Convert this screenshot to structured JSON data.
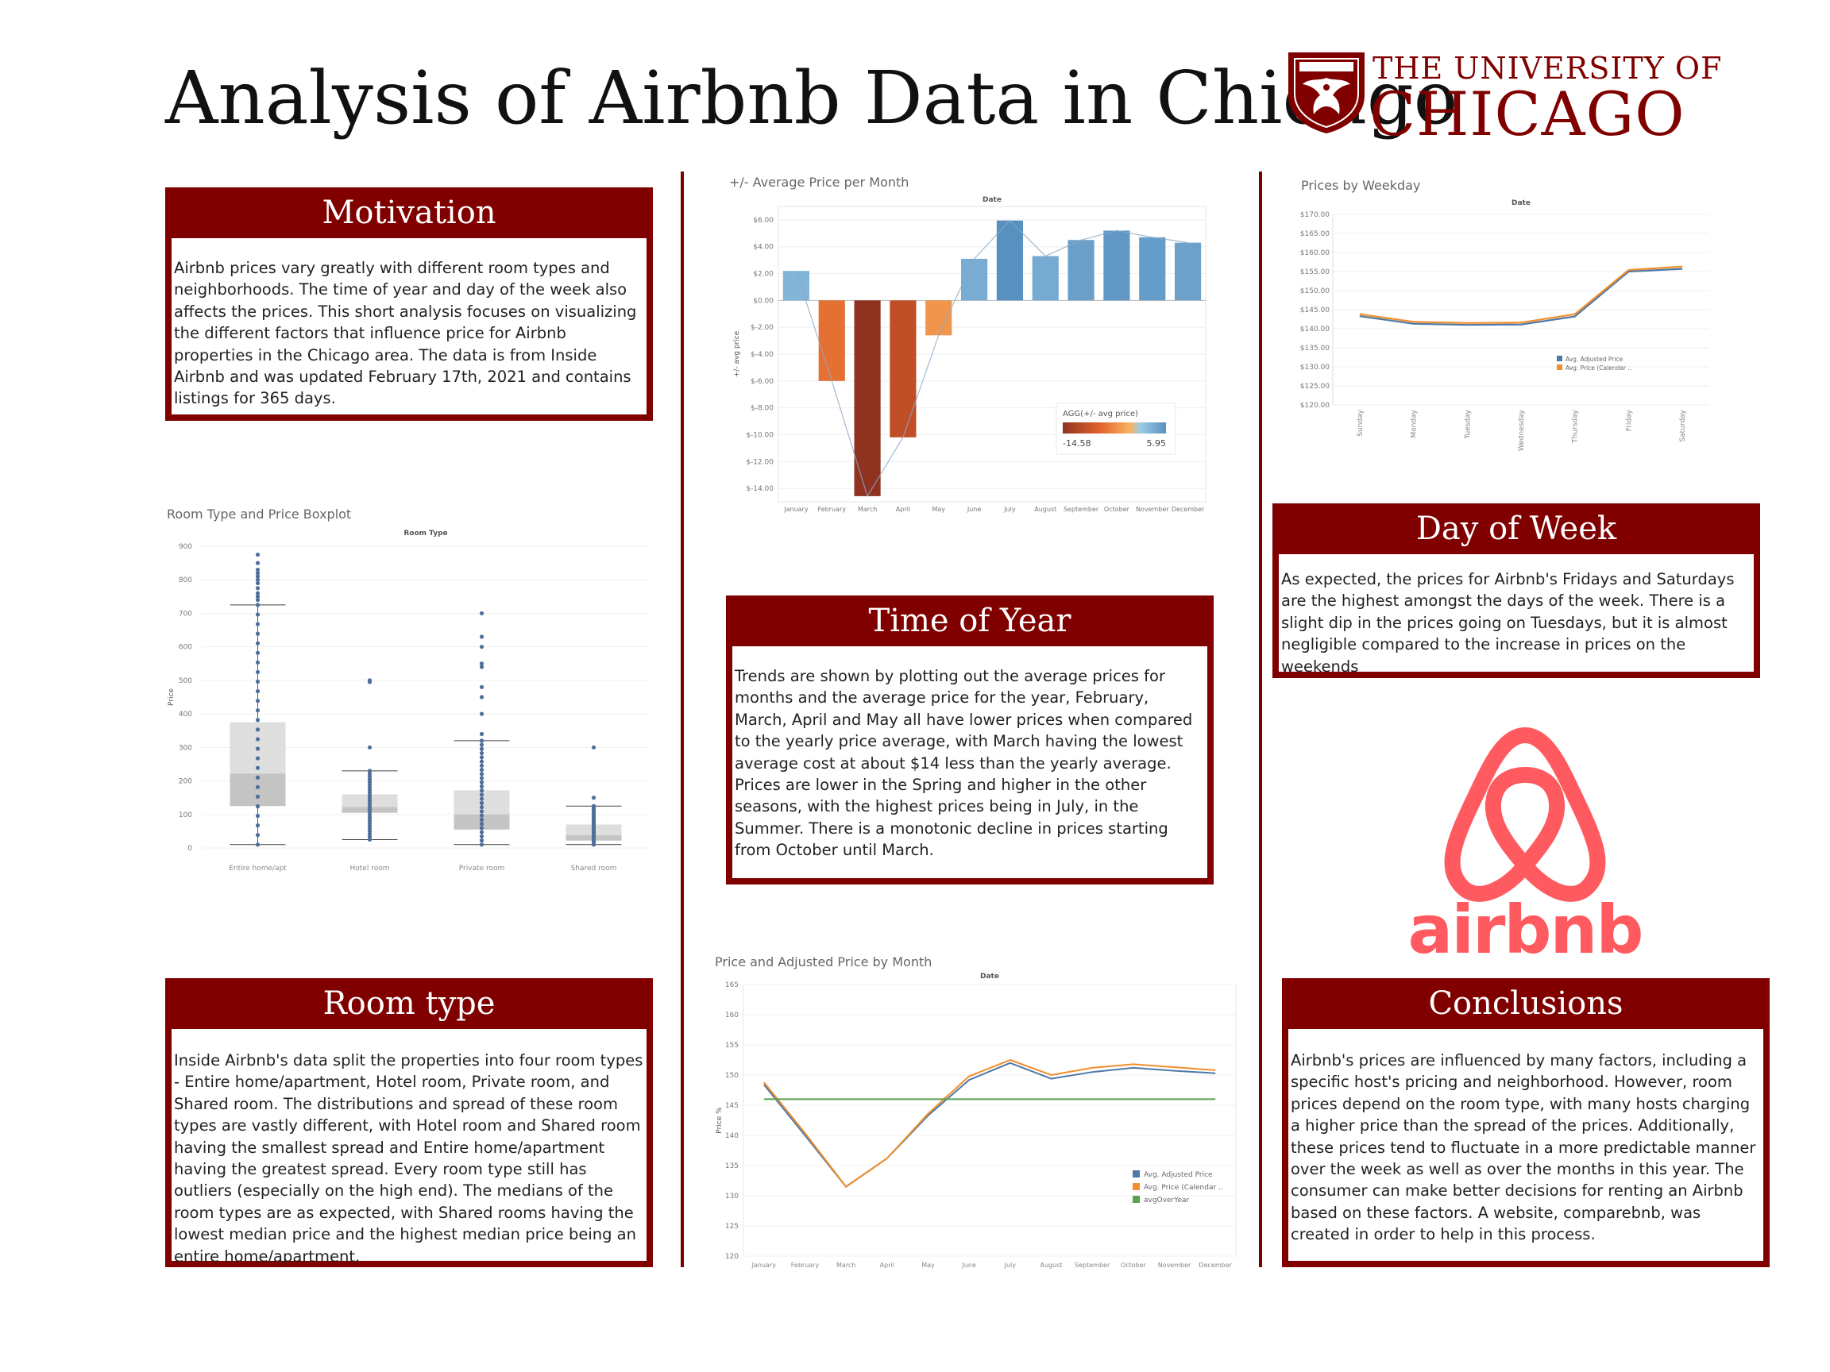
{
  "title": "Analysis of Airbnb Data in Chicago",
  "logo": {
    "line1": "THE UNIVERSITY OF",
    "line2": "CHICAGO",
    "color": "#800000"
  },
  "airbnb_logo": {
    "wordmark": "airbnb",
    "icon": "airbnb-belo-icon",
    "color": "#ff5a5f"
  },
  "motivation": {
    "heading": "Motivation",
    "text": "Airbnb prices vary greatly with different room types and neighborhoods. The time of year and day of the week also affects the prices. This short analysis focuses on visualizing the different factors that influence price for Airbnb properties in the Chicago area. The data is from Inside Airbnb and was updated February 17th, 2021 and contains listings for 365 days."
  },
  "time_of_year": {
    "heading": "Time of Year",
    "text": "Trends are shown by plotting out the average prices for months and the average price for the year, February, March, April and May all have lower prices when compared to the yearly price average, with March having the lowest average cost at about $14 less than the yearly average. Prices are lower in the Spring and higher in the other seasons, with the highest prices being in July, in the Summer. There is a monotonic decline in prices starting from October until March."
  },
  "day_of_week": {
    "heading": "Day of Week",
    "text": "As expected, the prices for Airbnb's Fridays and Saturdays are the highest amongst the days of the week. There is a slight dip in the prices going on Tuesdays, but it is almost negligible compared to the increase in prices on the weekends"
  },
  "room_type": {
    "heading": "Room type",
    "text": "Inside Airbnb's data split the properties into four room types - Entire home/apartment, Hotel room, Private room, and Shared room. The distributions and spread of these room types are vastly different, with Hotel room and Shared room having the smallest spread and Entire home/apartment having the greatest spread. Every room type still has outliers (especially on the high end). The medians of the room types are as expected, with Shared rooms having the lowest median price and the highest median price being an entire home/apartment."
  },
  "conclusions": {
    "heading": "Conclusions",
    "text": "Airbnb's prices are influenced by many factors, including a specific host's pricing and neighborhood. However, room prices depend on the room type, with many hosts charging a higher price than the spread of the prices. Additionally, these prices tend to fluctuate in a more predictable manner over the week as well as over the months in this year.  The consumer can make better decisions for renting an Airbnb based on these factors. A website, comparebnb, was created in order to help in this process."
  },
  "chart_data": [
    {
      "id": "month_diff",
      "type": "bar",
      "title": "+/- Average Price per Month",
      "xlabel": "Date",
      "ylabel": "+/- avg price",
      "categories": [
        "January",
        "February",
        "March",
        "April",
        "May",
        "June",
        "July",
        "August",
        "September",
        "October",
        "November",
        "December"
      ],
      "values": [
        2.2,
        -6.0,
        -14.58,
        -10.2,
        -2.6,
        3.1,
        5.95,
        3.3,
        4.5,
        5.2,
        4.7,
        4.3
      ],
      "ylim": [
        -15,
        7
      ],
      "yticks": [
        6,
        4,
        2,
        0,
        -2,
        -4,
        -6,
        -8,
        -10,
        -12,
        -14
      ],
      "ytick_labels": [
        "$6.00",
        "$4.00",
        "$2.00",
        "$0.00",
        "$-2.00",
        "$-4.00",
        "$-6.00",
        "$-8.00",
        "$-10.00",
        "$-12.00",
        "$-14.00"
      ],
      "legend": {
        "title": "AGG(+/- avg price)",
        "min_label": "-14.58",
        "max_label": "5.95",
        "position": "bottom-right"
      },
      "colors": {
        "negative_dark": "#8f3320",
        "negative_mid": "#e0622b",
        "negative_light": "#f9b35f",
        "positive_light": "#9ccae6",
        "positive_dark": "#5891c0"
      },
      "grid": true
    },
    {
      "id": "weekday",
      "type": "line",
      "title": "Prices by Weekday",
      "xlabel": "Date",
      "categories": [
        "Sunday",
        "Monday",
        "Tuesday",
        "Wednesday",
        "Thursday",
        "Friday",
        "Saturday"
      ],
      "series": [
        {
          "name": "Avg. Adjusted Price",
          "values": [
            143.3,
            141.3,
            141.0,
            141.1,
            143.2,
            155.0,
            155.7
          ],
          "color": "#4e79a7"
        },
        {
          "name": "Avg. Price (Calendar ..",
          "values": [
            143.8,
            141.8,
            141.5,
            141.6,
            143.8,
            155.4,
            156.3
          ],
          "color": "#f28e2b"
        }
      ],
      "ylim": [
        120,
        170
      ],
      "yticks": [
        170,
        165,
        160,
        155,
        150,
        145,
        140,
        135,
        130,
        125,
        120
      ],
      "ytick_labels": [
        "$170.00",
        "$165.00",
        "$160.00",
        "$155.00",
        "$150.00",
        "$145.00",
        "$140.00",
        "$135.00",
        "$130.00",
        "$125.00",
        "$120.00"
      ],
      "legend": "right",
      "grid": true
    },
    {
      "id": "boxplot",
      "type": "boxplot",
      "title": "Room Type and Price Boxplot",
      "xlabel": "Room Type",
      "ylabel": "Price",
      "categories": [
        "Entire home/apt",
        "Hotel room",
        "Private room",
        "Shared room"
      ],
      "boxes": [
        {
          "whisker_low": 10,
          "q1": 125,
          "median": 222,
          "q3": 375,
          "whisker_high": 725,
          "outliers": [
            740,
            750,
            760,
            775,
            790,
            800,
            810,
            820,
            830,
            850,
            875
          ]
        },
        {
          "whisker_low": 25,
          "q1": 105,
          "median": 122,
          "q3": 160,
          "whisker_high": 230,
          "outliers": [
            300,
            495,
            500
          ]
        },
        {
          "whisker_low": 10,
          "q1": 55,
          "median": 100,
          "q3": 172,
          "whisker_high": 320,
          "outliers": [
            340,
            400,
            450,
            480,
            540,
            550,
            600,
            630,
            700
          ]
        },
        {
          "whisker_low": 10,
          "q1": 22,
          "median": 38,
          "q3": 70,
          "whisker_high": 125,
          "outliers": [
            150,
            300
          ]
        }
      ],
      "ylim": [
        0,
        900
      ],
      "yticks": [
        0,
        100,
        200,
        300,
        400,
        500,
        600,
        700,
        800,
        900
      ],
      "grid": true
    },
    {
      "id": "month_price",
      "type": "line",
      "title": "Price and Adjusted Price by Month",
      "xlabel": "Date",
      "ylabel": "Price %",
      "categories": [
        "January",
        "February",
        "March",
        "April",
        "May",
        "June",
        "July",
        "August",
        "September",
        "October",
        "November",
        "December"
      ],
      "series": [
        {
          "name": "Avg. Adjusted Price",
          "values": [
            148.4,
            140.0,
            131.5,
            136.2,
            143.3,
            149.2,
            152.0,
            149.4,
            150.5,
            151.2,
            150.7,
            150.3
          ],
          "color": "#4e79a7"
        },
        {
          "name": "Avg. Price (Calendar ..",
          "values": [
            148.8,
            140.4,
            131.5,
            136.2,
            143.6,
            149.8,
            152.5,
            150.0,
            151.2,
            151.8,
            151.3,
            150.8
          ],
          "color": "#f28e2b"
        },
        {
          "name": "avgOverYear",
          "values": [
            146,
            146,
            146,
            146,
            146,
            146,
            146,
            146,
            146,
            146,
            146,
            146
          ],
          "color": "#59a14f"
        }
      ],
      "ylim": [
        120,
        165
      ],
      "yticks": [
        165,
        160,
        155,
        150,
        145,
        140,
        135,
        130,
        125,
        120
      ],
      "legend": "right",
      "grid": true
    }
  ]
}
